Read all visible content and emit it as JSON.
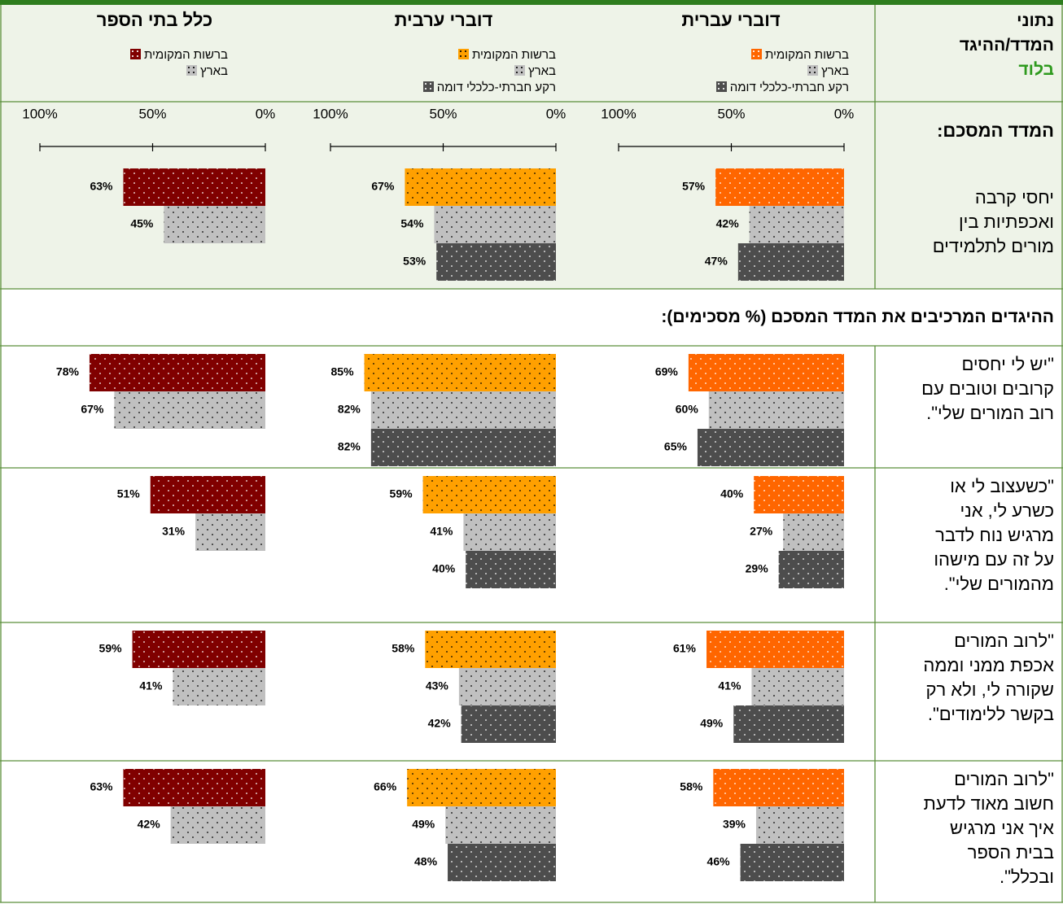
{
  "header": {
    "lines": [
      "נתוני",
      "המדד/ההיגד"
    ],
    "city": "בלוד"
  },
  "groups": [
    {
      "title": "דוברי עברית",
      "legend": [
        {
          "name": "ברשות המקומית",
          "color": "#ff6600"
        },
        {
          "name": "בארץ",
          "color": "#c0c0c0"
        },
        {
          "name": "רקע חברתי-כלכלי דומה",
          "color": "#4d4d4d"
        }
      ]
    },
    {
      "title": "דוברי ערבית",
      "legend": [
        {
          "name": "ברשות המקומית",
          "color": "#ffa000"
        },
        {
          "name": "בארץ",
          "color": "#c0c0c0"
        },
        {
          "name": "רקע חברתי-כלכלי דומה",
          "color": "#4d4d4d"
        }
      ]
    },
    {
      "title": "כלל בתי הספר",
      "legend": [
        {
          "name": "ברשות המקומית",
          "color": "#800000"
        },
        {
          "name": "בארץ",
          "color": "#c0c0c0"
        }
      ]
    }
  ],
  "axis": {
    "xlim": [
      0,
      100
    ],
    "xticks": [
      {
        "value": 100,
        "label": "100%"
      },
      {
        "value": 50,
        "label": "50%"
      },
      {
        "value": 0,
        "label": "0%"
      }
    ]
  },
  "summary": {
    "title": "המדד המסכם:",
    "lines": [
      "יחסי קרבה",
      "ואכפתיות בין",
      "מורים לתלמידים"
    ],
    "groups": [
      {
        "values": [
          57,
          42,
          47
        ],
        "value_labels": [
          "57%",
          "42%",
          "47%"
        ]
      },
      {
        "values": [
          67,
          54,
          53
        ],
        "value_labels": [
          "67%",
          "54%",
          "53%"
        ]
      },
      {
        "values": [
          63,
          45
        ],
        "value_labels": [
          "63%",
          "45%"
        ]
      }
    ]
  },
  "section_title": "ההיגדים המרכיבים את המדד המסכם (% מסכימים):",
  "rows": [
    {
      "lines": [
        "\"יש לי יחסים",
        "קרובים וטובים עם",
        "רוב המורים שלי\"."
      ],
      "groups": [
        {
          "values": [
            69,
            60,
            65
          ],
          "value_labels": [
            "69%",
            "60%",
            "65%"
          ]
        },
        {
          "values": [
            85,
            82,
            82
          ],
          "value_labels": [
            "85%",
            "82%",
            "82%"
          ]
        },
        {
          "values": [
            78,
            67
          ],
          "value_labels": [
            "78%",
            "67%"
          ]
        }
      ]
    },
    {
      "lines": [
        "\"כשעצוב לי או",
        "כשרע לי, אני",
        "מרגיש נוח לדבר",
        "על זה עם מישהו",
        "מהמורים שלי\"."
      ],
      "groups": [
        {
          "values": [
            40,
            27,
            29
          ],
          "value_labels": [
            "40%",
            "27%",
            "29%"
          ]
        },
        {
          "values": [
            59,
            41,
            40
          ],
          "value_labels": [
            "59%",
            "41%",
            "40%"
          ]
        },
        {
          "values": [
            51,
            31
          ],
          "value_labels": [
            "51%",
            "31%"
          ]
        }
      ]
    },
    {
      "lines": [
        "\"לרוב המורים",
        "אכפת ממני וממה",
        "שקורה לי, ולא רק",
        "בקשר ללימודים\"."
      ],
      "groups": [
        {
          "values": [
            61,
            41,
            49
          ],
          "value_labels": [
            "61%",
            "41%",
            "49%"
          ]
        },
        {
          "values": [
            58,
            43,
            42
          ],
          "value_labels": [
            "58%",
            "43%",
            "42%"
          ]
        },
        {
          "values": [
            59,
            41
          ],
          "value_labels": [
            "59%",
            "41%"
          ]
        }
      ]
    },
    {
      "lines": [
        "\"לרוב המורים",
        "חשוב מאוד לדעת",
        "איך אני מרגיש",
        "בבית הספר",
        "ובכלל\"."
      ],
      "groups": [
        {
          "values": [
            58,
            39,
            46
          ],
          "value_labels": [
            "58%",
            "39%",
            "46%"
          ]
        },
        {
          "values": [
            66,
            49,
            48
          ],
          "value_labels": [
            "66%",
            "49%",
            "48%"
          ]
        },
        {
          "values": [
            63,
            42
          ],
          "value_labels": [
            "63%",
            "42%"
          ]
        }
      ]
    }
  ]
}
